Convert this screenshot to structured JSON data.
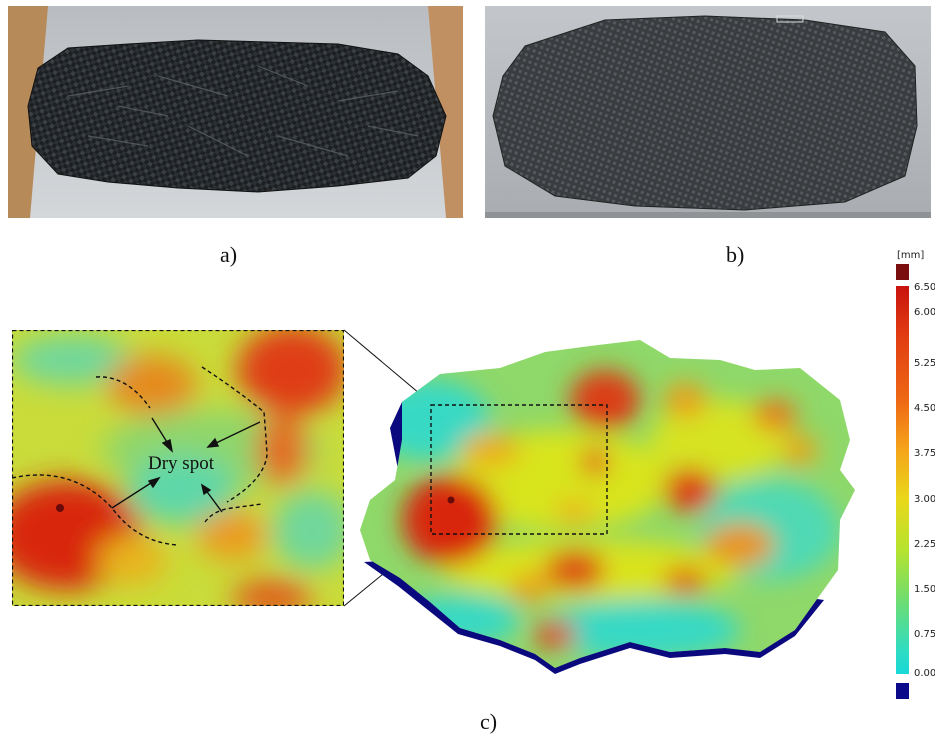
{
  "labels": {
    "a": "a)",
    "b": "b)",
    "c": "c)"
  },
  "inset": {
    "annotation": "Dry spot"
  },
  "colorbar": {
    "unit": "[mm]",
    "ticks": [
      "6.50",
      "6.00",
      "5.25",
      "4.50",
      "3.75",
      "3.00",
      "2.25",
      "1.50",
      "0.75",
      "0.00"
    ],
    "range": [
      0.0,
      6.5
    ],
    "colors": {
      "over": "#7a0e0e",
      "under": "#0a0a8a",
      "high": "#d41c0c",
      "mid_high": "#f08a12",
      "mid": "#e6e613",
      "mid_low": "#9bd63a",
      "low": "#18d8d0"
    }
  }
}
